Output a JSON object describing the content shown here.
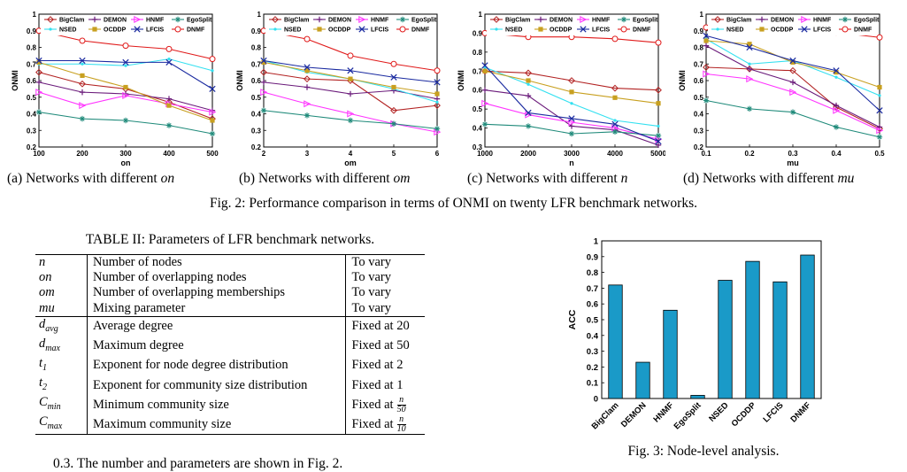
{
  "figure2": {
    "caption": "Fig. 2: Performance comparison in terms of ONMI on twenty LFR benchmark networks.",
    "legend": [
      "BigClam",
      "DEMON",
      "HNMF",
      "EgoSplit",
      "NSED",
      "OCDDP",
      "LFCIS",
      "DNMF"
    ],
    "panels": [
      {
        "sub_prefix": "(a) Networks with different ",
        "sub_var": "on"
      },
      {
        "sub_prefix": "(b) Networks with different ",
        "sub_var": "om"
      },
      {
        "sub_prefix": "(c) Networks with different ",
        "sub_var": "n"
      },
      {
        "sub_prefix": "(d) Networks with different ",
        "sub_var": "mu"
      }
    ]
  },
  "table2": {
    "caption": "TABLE II: Parameters of LFR benchmark networks.",
    "rows": [
      {
        "sym": "n",
        "desc": "Number of nodes",
        "val": "To vary"
      },
      {
        "sym": "on",
        "desc": "Number of overlapping nodes",
        "val": "To vary"
      },
      {
        "sym": "om",
        "desc": "Number of overlapping memberships",
        "val": "To vary"
      },
      {
        "sym": "mu",
        "desc": "Mixing parameter",
        "val": "To vary"
      },
      {
        "sym": "d_avg",
        "desc": "Average degree",
        "val": "Fixed at 20"
      },
      {
        "sym": "d_max",
        "desc": "Maximum degree",
        "val": "Fixed at 50"
      },
      {
        "sym": "t_1",
        "desc": "Exponent for node degree distribution",
        "val": "Fixed at 2"
      },
      {
        "sym": "t_2",
        "desc": "Exponent for community size distribution",
        "val": "Fixed at 1"
      },
      {
        "sym": "C_min",
        "desc": "Minimum community size",
        "val": "Fixed at"
      },
      {
        "sym": "C_max",
        "desc": "Maximum community size",
        "val": "Fixed at"
      }
    ],
    "frac_min": {
      "num": "n",
      "den": "50"
    },
    "frac_max": {
      "num": "n",
      "den": "10"
    }
  },
  "figure3": {
    "caption": "Fig. 3: Node-level analysis."
  },
  "body_text": "0.3. The number and parameters are shown in Fig. 2.",
  "colors": {
    "BigClam": "#b22222",
    "DEMON": "#6a1a7a",
    "HNMF": "#ff33ff",
    "EgoSplit": "#1f8a7a",
    "NSED": "#33e0f0",
    "OCDDP": "#c8a020",
    "LFCIS": "#1a2aa0",
    "DNMF": "#e01a1a",
    "bar": "#1a9ac8"
  },
  "chart_data": [
    {
      "type": "line",
      "xlabel": "on",
      "ylabel": "ONMI",
      "x": [
        100,
        200,
        300,
        400,
        500
      ],
      "xlim": [
        100,
        500
      ],
      "ylim": [
        0.2,
        1.0
      ],
      "xticks": [
        "100",
        "200",
        "300",
        "400",
        "500"
      ],
      "yticks": [
        "0.2",
        "0.3",
        "0.4",
        "0.5",
        "0.6",
        "0.7",
        "0.8",
        "0.9",
        "1"
      ],
      "legend_position": "top",
      "series": [
        {
          "name": "BigClam",
          "values": [
            0.65,
            0.58,
            0.55,
            0.47,
            0.37
          ]
        },
        {
          "name": "DEMON",
          "values": [
            0.59,
            0.53,
            0.52,
            0.49,
            0.42
          ]
        },
        {
          "name": "HNMF",
          "values": [
            0.53,
            0.45,
            0.51,
            0.46,
            0.41
          ]
        },
        {
          "name": "EgoSplit",
          "values": [
            0.41,
            0.37,
            0.36,
            0.33,
            0.28
          ]
        },
        {
          "name": "NSED",
          "values": [
            0.7,
            0.7,
            0.69,
            0.73,
            0.66
          ]
        },
        {
          "name": "OCDDP",
          "values": [
            0.71,
            0.63,
            0.56,
            0.45,
            0.36
          ]
        },
        {
          "name": "LFCIS",
          "values": [
            0.72,
            0.72,
            0.71,
            0.71,
            0.55
          ]
        },
        {
          "name": "DNMF",
          "values": [
            0.9,
            0.84,
            0.81,
            0.79,
            0.73
          ]
        }
      ]
    },
    {
      "type": "line",
      "xlabel": "om",
      "ylabel": "ONMI",
      "x": [
        2,
        3,
        4,
        5,
        6
      ],
      "xlim": [
        2,
        6
      ],
      "ylim": [
        0.2,
        1.0
      ],
      "xticks": [
        "2",
        "3",
        "4",
        "5",
        "6"
      ],
      "yticks": [
        "0.2",
        "0.3",
        "0.4",
        "0.5",
        "0.6",
        "0.7",
        "0.8",
        "0.9",
        "1"
      ],
      "legend_position": "top",
      "series": [
        {
          "name": "BigClam",
          "values": [
            0.65,
            0.61,
            0.6,
            0.42,
            0.45
          ]
        },
        {
          "name": "DEMON",
          "values": [
            0.59,
            0.56,
            0.52,
            0.54,
            0.49
          ]
        },
        {
          "name": "HNMF",
          "values": [
            0.53,
            0.46,
            0.4,
            0.34,
            0.29
          ]
        },
        {
          "name": "EgoSplit",
          "values": [
            0.42,
            0.39,
            0.36,
            0.34,
            0.31
          ]
        },
        {
          "name": "NSED",
          "values": [
            0.72,
            0.65,
            0.61,
            0.55,
            0.47
          ]
        },
        {
          "name": "OCDDP",
          "values": [
            0.71,
            0.66,
            0.61,
            0.56,
            0.52
          ]
        },
        {
          "name": "LFCIS",
          "values": [
            0.72,
            0.68,
            0.66,
            0.62,
            0.59
          ]
        },
        {
          "name": "DNMF",
          "values": [
            0.9,
            0.85,
            0.75,
            0.7,
            0.66
          ]
        }
      ]
    },
    {
      "type": "line",
      "xlabel": "n",
      "ylabel": "ONMI",
      "x": [
        1000,
        2000,
        3000,
        4000,
        5000
      ],
      "xlim": [
        1000,
        5000
      ],
      "ylim": [
        0.3,
        1.0
      ],
      "xticks": [
        "1000",
        "2000",
        "3000",
        "4000",
        "5000"
      ],
      "yticks": [
        "0.3",
        "0.4",
        "0.5",
        "0.6",
        "0.7",
        "0.8",
        "0.9",
        "1"
      ],
      "legend_position": "top",
      "series": [
        {
          "name": "BigClam",
          "values": [
            0.7,
            0.69,
            0.65,
            0.61,
            0.6
          ]
        },
        {
          "name": "DEMON",
          "values": [
            0.6,
            0.57,
            0.41,
            0.39,
            0.31
          ]
        },
        {
          "name": "HNMF",
          "values": [
            0.53,
            0.47,
            0.43,
            0.4,
            0.34
          ]
        },
        {
          "name": "EgoSplit",
          "values": [
            0.42,
            0.41,
            0.37,
            0.38,
            0.36
          ]
        },
        {
          "name": "NSED",
          "values": [
            0.72,
            0.63,
            0.53,
            0.44,
            0.41
          ]
        },
        {
          "name": "OCDDP",
          "values": [
            0.7,
            0.65,
            0.59,
            0.56,
            0.53
          ]
        },
        {
          "name": "LFCIS",
          "values": [
            0.73,
            0.48,
            0.45,
            0.42,
            0.33
          ]
        },
        {
          "name": "DNMF",
          "values": [
            0.9,
            0.88,
            0.88,
            0.87,
            0.85
          ]
        }
      ]
    },
    {
      "type": "line",
      "xlabel": "mu",
      "ylabel": "ONMI",
      "x": [
        0.1,
        0.2,
        0.3,
        0.4,
        0.5
      ],
      "xlim": [
        0.1,
        0.5
      ],
      "ylim": [
        0.2,
        1.0
      ],
      "xticks": [
        "0.1",
        "0.2",
        "0.3",
        "0.4",
        "0.5"
      ],
      "yticks": [
        "0.2",
        "0.3",
        "0.4",
        "0.5",
        "0.6",
        "0.7",
        "0.8",
        "0.9",
        "1"
      ],
      "legend_position": "top",
      "series": [
        {
          "name": "BigClam",
          "values": [
            0.68,
            0.67,
            0.66,
            0.44,
            0.31
          ]
        },
        {
          "name": "DEMON",
          "values": [
            0.81,
            0.67,
            0.59,
            0.45,
            0.32
          ]
        },
        {
          "name": "HNMF",
          "values": [
            0.64,
            0.61,
            0.53,
            0.42,
            0.3
          ]
        },
        {
          "name": "EgoSplit",
          "values": [
            0.48,
            0.43,
            0.41,
            0.32,
            0.26
          ]
        },
        {
          "name": "NSED",
          "values": [
            0.85,
            0.7,
            0.72,
            0.62,
            0.51
          ]
        },
        {
          "name": "OCDDP",
          "values": [
            0.84,
            0.82,
            0.71,
            0.65,
            0.56
          ]
        },
        {
          "name": "LFCIS",
          "values": [
            0.87,
            0.8,
            0.72,
            0.66,
            0.42
          ]
        },
        {
          "name": "DNMF",
          "values": [
            0.92,
            0.91,
            0.9,
            0.89,
            0.86
          ]
        }
      ]
    },
    {
      "type": "bar",
      "ylabel": "ACC",
      "categories": [
        "BigClam",
        "DEMON",
        "HNMF",
        "EgoSplit",
        "NSED",
        "OCDDP",
        "LFCIS",
        "DNMF"
      ],
      "values": [
        0.72,
        0.23,
        0.56,
        0.02,
        0.75,
        0.87,
        0.74,
        0.91
      ],
      "ylim": [
        0,
        1.0
      ],
      "yticks": [
        "0",
        "0.1",
        "0.2",
        "0.3",
        "0.4",
        "0.5",
        "0.6",
        "0.7",
        "0.8",
        "0.9",
        "1"
      ]
    }
  ]
}
